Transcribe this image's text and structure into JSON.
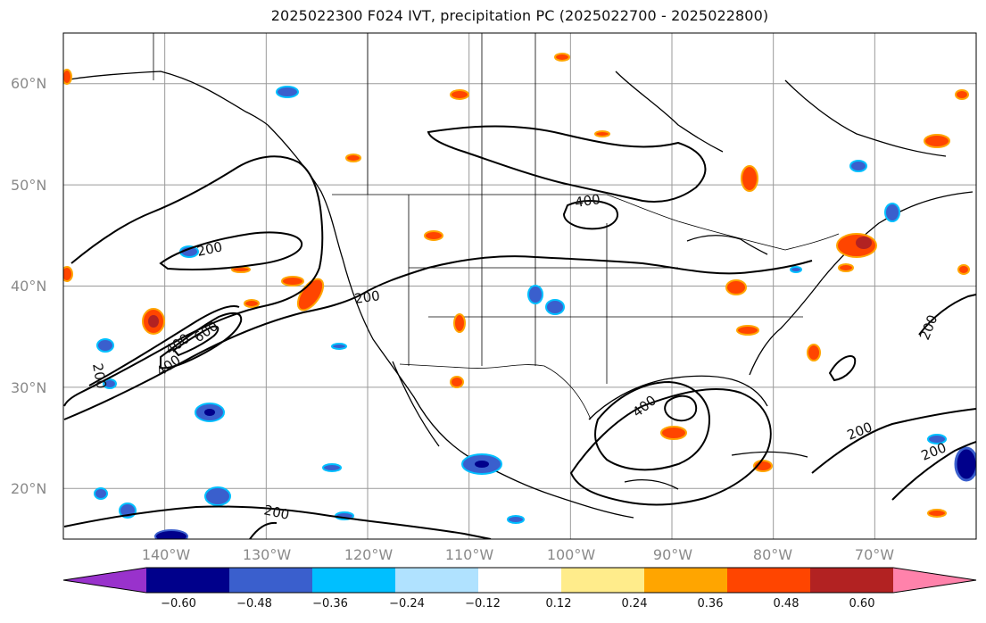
{
  "title": "2025022300 F024 IVT, precipitation PC (2025022700 - 2025022800)",
  "map": {
    "lat_labels": [
      "60°N",
      "50°N",
      "40°N",
      "30°N",
      "20°N"
    ],
    "lon_labels": [
      "140°W",
      "130°W",
      "120°W",
      "110°W",
      "100°W",
      "90°W",
      "80°W",
      "70°W"
    ],
    "lat_values": [
      60,
      50,
      40,
      30,
      20
    ],
    "lon_values": [
      -140,
      -130,
      -120,
      -110,
      -100,
      -90,
      -80,
      -70
    ],
    "extent": {
      "lon": [
        -150,
        -60
      ],
      "lat": [
        15,
        65
      ]
    },
    "contour_labels": [
      "200",
      "200",
      "400",
      "600",
      "400",
      "200",
      "400",
      "400",
      "200",
      "200",
      "200",
      "200"
    ],
    "contour_levels": [
      200,
      400,
      600
    ]
  },
  "colorbar": {
    "ticks": [
      "−0.60",
      "−0.48",
      "−0.36",
      "−0.24",
      "−0.12",
      "0.12",
      "0.24",
      "0.36",
      "0.48",
      "0.60"
    ],
    "colors": [
      "#9932cc",
      "#00008b",
      "#3a5fcd",
      "#00bfff",
      "#b0e2ff",
      "#ffffff",
      "#ffec8b",
      "#ffa500",
      "#ff4500",
      "#b22222",
      "#ff82ab"
    ],
    "extend": "both"
  }
}
